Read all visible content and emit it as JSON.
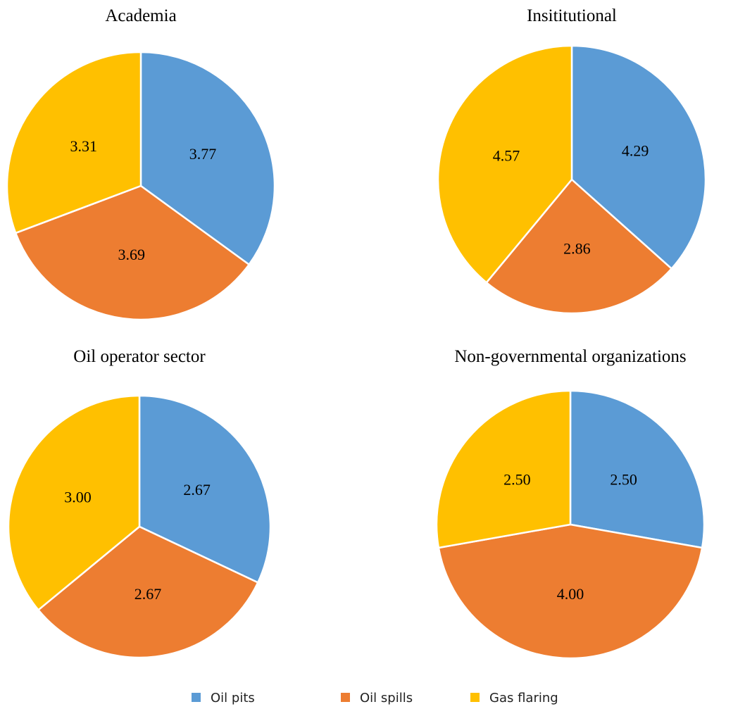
{
  "chart_data": [
    {
      "type": "pie",
      "title": "Academia",
      "categories": [
        "Oil pits",
        "Oil spills",
        "Gas flaring"
      ],
      "values": [
        3.77,
        3.69,
        3.31
      ],
      "labels": [
        "3.77",
        "3.69",
        "3.31"
      ]
    },
    {
      "type": "pie",
      "title": "Insititutional",
      "categories": [
        "Oil pits",
        "Oil spills",
        "Gas flaring"
      ],
      "values": [
        4.29,
        2.86,
        4.57
      ],
      "labels": [
        "4.29",
        "2.86",
        "4.57"
      ]
    },
    {
      "type": "pie",
      "title": "Oil operator sector",
      "categories": [
        "Oil pits",
        "Oil spills",
        "Gas flaring"
      ],
      "values": [
        2.67,
        2.67,
        3.0
      ],
      "labels": [
        "2.67",
        "2.67",
        "3.00"
      ]
    },
    {
      "type": "pie",
      "title": "Non-governmental  organizations",
      "categories": [
        "Oil pits",
        "Oil spills",
        "Gas flaring"
      ],
      "values": [
        2.5,
        4.0,
        2.5
      ],
      "labels": [
        "2.50",
        "4.00",
        "2.50"
      ]
    }
  ],
  "legend": {
    "placement": "bottom-center",
    "items": [
      {
        "label": "Oil pits",
        "color": "#5B9BD5"
      },
      {
        "label": "Oil spills",
        "color": "#ED7D31"
      },
      {
        "label": "Gas flaring",
        "color": "#FFC000"
      }
    ]
  }
}
